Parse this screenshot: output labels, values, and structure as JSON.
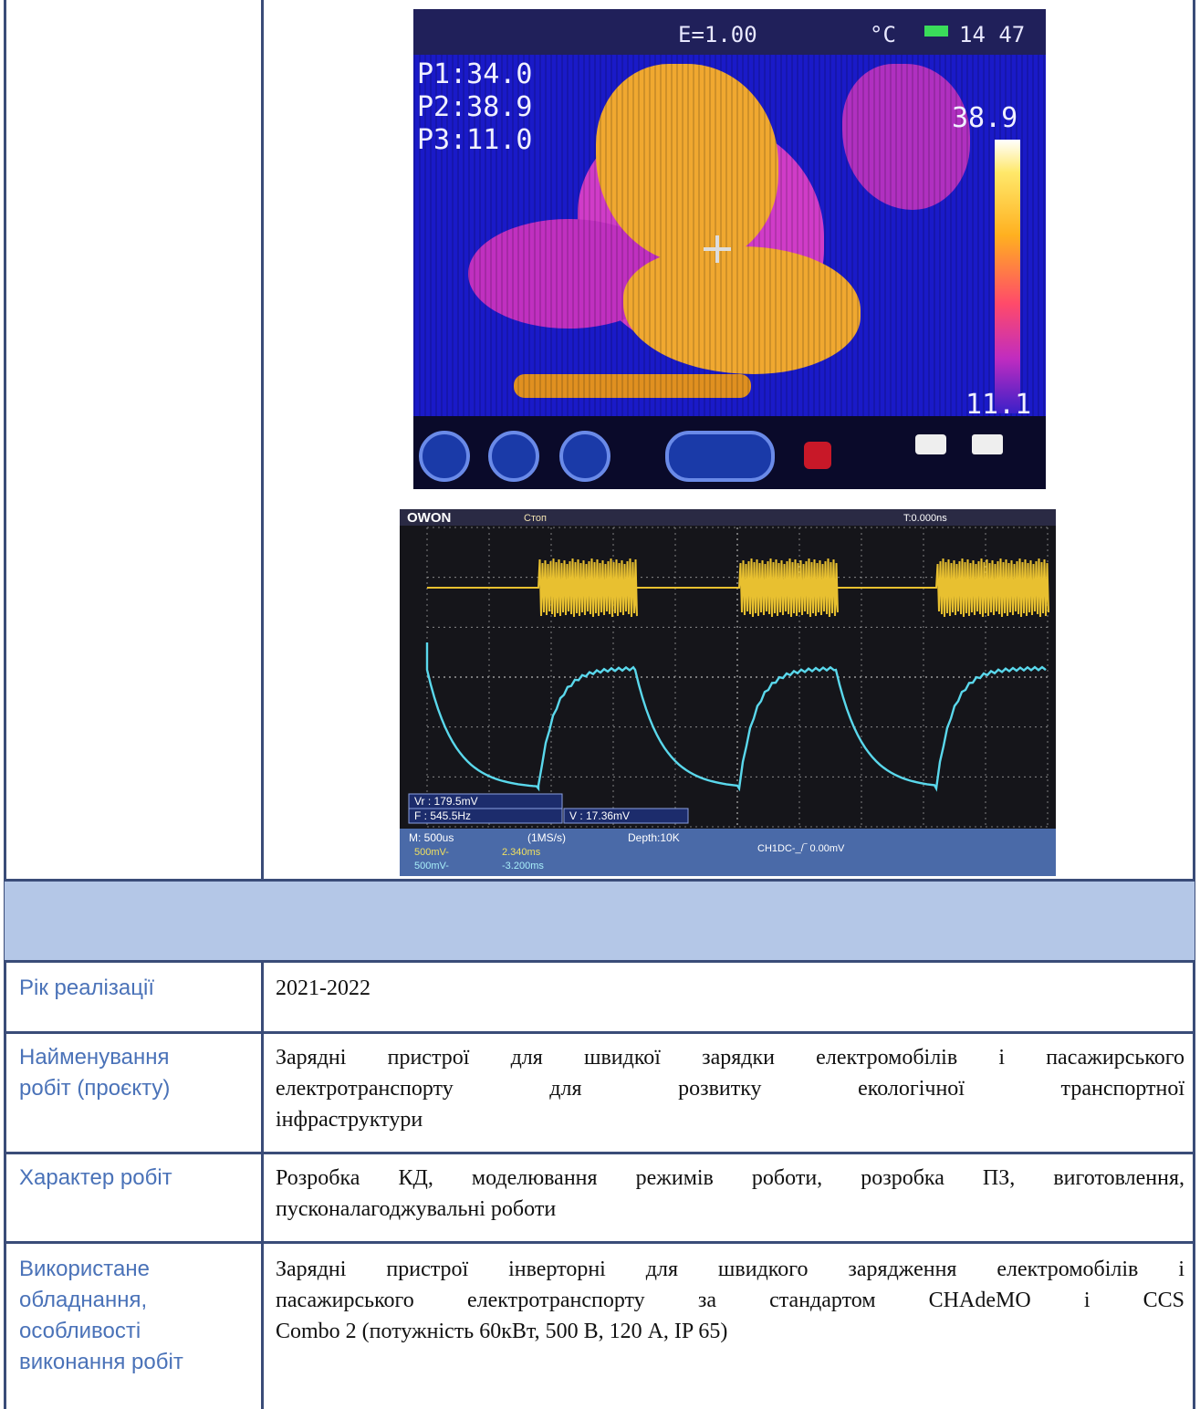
{
  "thermal": {
    "top_status": "E=1.00",
    "unit": "°C",
    "time": "14 47",
    "points": [
      "P1:34.0",
      "P2:38.9",
      "P3:11.0"
    ],
    "scale_max": "38.9",
    "scale_min": "11.1",
    "colors": {
      "background": "#1a1ac8",
      "hot": "#f0a830",
      "warm": "#d03cc8"
    }
  },
  "scope": {
    "brand": "OWON",
    "status": "Стоп",
    "trigger_time": "T:0.000ns",
    "meas_vr": "Vr : 179.5mV",
    "meas_f": "F : 545.5Hz",
    "meas_v": "V : 17.36mV",
    "timebase": "M: 500us",
    "rate": "(1MS/s)",
    "depth": "Depth:10K",
    "ch1_scale": "500mV-",
    "ch1_value": "2.340ms",
    "ch2_scale": "500mV-",
    "ch2_value": "-3.200ms",
    "trigger": "CH1DC-_/‾ 0.00mV",
    "colors": {
      "ch1": "#e8c030",
      "ch2": "#5ad8ec",
      "grid": "#9a9a9a"
    }
  },
  "rows": [
    {
      "label": "Рік реалізації",
      "value": "2021-2022"
    },
    {
      "label": "Найменування робіт (проєкту)",
      "value": "Зарядні пристрої для швидкої зарядки електромобілів і пасажирського електротранспорту для розвитку екологічної транспортної інфраструктури"
    },
    {
      "label": "Характер робіт",
      "value": "Розробка КД, моделювання режимів роботи, розробка ПЗ, виготовлення, пусконалагоджувальні роботи"
    },
    {
      "label": "Використане обладнання, особливості виконання робіт",
      "value": "Зарядні пристрої інверторні для швидкого зарядження електромобілів і пасажирського електротранспорту за стандартом CHAdeMO і CCS Combo 2 (потужність 60кВт, 500 В, 120 А, IP 65)"
    }
  ],
  "labels_split": {
    "r0": [
      "Рік реалізації"
    ],
    "r1": [
      "Найменування",
      "робіт (проєкту)"
    ],
    "r2": [
      "Характер робіт"
    ],
    "r3": [
      "Використане",
      "обладнання,",
      "особливості",
      "виконання робіт"
    ]
  },
  "values_split": {
    "r1": [
      "Зарядні пристрої для швидкої зарядки електромобілів і пасажирського",
      "електротранспорту для розвитку екологічної транспортної",
      "інфраструктури"
    ],
    "r2": [
      "Розробка КД, моделювання режимів роботи, розробка ПЗ, виготовлення,",
      "пусконалагоджувальні роботи"
    ],
    "r3": [
      "Зарядні пристрої інверторні для швидкого зарядження електромобілів і",
      "пасажирського електротранспорту за стандартом CHAdeMO і CCS",
      "Combo 2 (потужність 60кВт, 500 В, 120 А, IP 65)"
    ]
  }
}
